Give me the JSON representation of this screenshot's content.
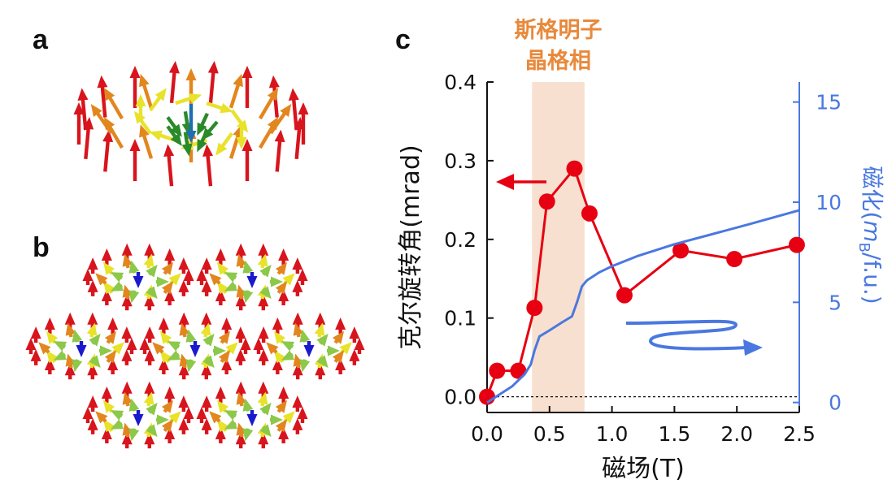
{
  "panels": {
    "a": "a",
    "b": "b",
    "c": "c"
  },
  "colors": {
    "kerr": "#e60012",
    "magnetization": "#4a78e0",
    "phase_band": "#f7e0cf",
    "phase_label": "#e8893c",
    "spin_up": "#d8141c",
    "spin_orange": "#e2861e",
    "spin_yellow": "#e8e22a",
    "spin_green": "#2a8a2a",
    "spin_blue": "#1e6fb0",
    "lattice_core": "#1a1acd",
    "lattice_green": "#8cc84a"
  },
  "chart_data": {
    "type": "line",
    "title": "",
    "phase_label_line1": "斯格明子",
    "phase_label_line2": "晶格相",
    "xlabel": "磁场(T)",
    "ylabel_left": "克尔旋转角(mrad)",
    "ylabel_right": "磁化(mB/f.u.)",
    "ylabel_right_main": "磁化(",
    "ylabel_right_m": "m",
    "ylabel_right_sub": "B",
    "ylabel_right_tail": "/f.u.)",
    "xlim": [
      0.0,
      2.5
    ],
    "ylim_left": [
      -0.02,
      0.4
    ],
    "ylim_right": [
      -0.5,
      16
    ],
    "x_ticks": [
      "0.0",
      "0.5",
      "1.0",
      "1.5",
      "2.0",
      "2.5"
    ],
    "y_left_ticks": [
      "0.0",
      "0.1",
      "0.2",
      "0.3",
      "0.4"
    ],
    "y_right_ticks": [
      "0",
      "5",
      "10",
      "15"
    ],
    "phase_band": [
      0.36,
      0.78
    ],
    "series": [
      {
        "axis": "left",
        "marker": "circle",
        "x": [
          0.0,
          0.08,
          0.25,
          0.38,
          0.48,
          0.7,
          0.82,
          1.1,
          1.55,
          1.98,
          2.48
        ],
        "y": [
          0.0,
          0.033,
          0.033,
          0.113,
          0.248,
          0.29,
          0.233,
          0.129,
          0.186,
          0.175,
          0.193
        ]
      },
      {
        "axis": "right",
        "marker": "none",
        "x": [
          0.0,
          0.1,
          0.2,
          0.3,
          0.35,
          0.38,
          0.42,
          0.5,
          0.6,
          0.68,
          0.72,
          0.76,
          0.8,
          0.9,
          1.0,
          1.2,
          1.5,
          1.8,
          2.1,
          2.5
        ],
        "y": [
          0.0,
          0.4,
          0.8,
          1.4,
          1.9,
          2.6,
          3.3,
          3.6,
          4.0,
          4.3,
          5.0,
          5.8,
          6.1,
          6.5,
          6.8,
          7.3,
          7.9,
          8.4,
          8.9,
          9.6
        ]
      }
    ]
  }
}
